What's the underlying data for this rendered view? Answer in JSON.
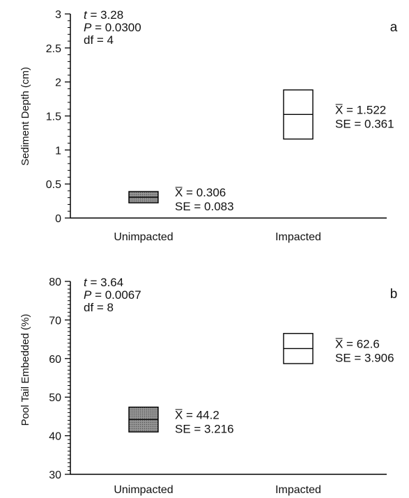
{
  "chart_data": [
    {
      "type": "box",
      "panel": "a",
      "ylabel": "Sediment Depth (cm)",
      "ylim": [
        0,
        3
      ],
      "yticks": [
        "0",
        "0.5",
        "1",
        "1.5",
        "2",
        "2.5",
        "3"
      ],
      "categories": [
        "Unimpacted",
        "Impacted"
      ],
      "stats": {
        "t": "t = 3.28",
        "p": "P = 0.0300",
        "df": "df = 4"
      },
      "groups": [
        {
          "category": "Unimpacted",
          "mean": 0.306,
          "se": 0.083,
          "low": 0.223,
          "high": 0.389,
          "filled": true,
          "mean_label": "X̅ = 0.306",
          "se_label": "SE  = 0.083"
        },
        {
          "category": "Impacted",
          "mean": 1.522,
          "se": 0.361,
          "low": 1.161,
          "high": 1.883,
          "filled": false,
          "mean_label": "X̅ = 1.522",
          "se_label": "SE  = 0.361"
        }
      ]
    },
    {
      "type": "box",
      "panel": "b",
      "ylabel": "Pool Tail Embedded (%)",
      "ylim": [
        30,
        80
      ],
      "yticks": [
        "30",
        "40",
        "50",
        "60",
        "70",
        "80"
      ],
      "categories": [
        "Unimpacted",
        "Impacted"
      ],
      "stats": {
        "t": "t = 3.64",
        "p": "P = 0.0067",
        "df": "df = 8"
      },
      "groups": [
        {
          "category": "Unimpacted",
          "mean": 44.2,
          "se": 3.216,
          "low": 40.984,
          "high": 47.416,
          "filled": true,
          "mean_label": "X̅ = 44.2",
          "se_label": "SE  = 3.216"
        },
        {
          "category": "Impacted",
          "mean": 62.6,
          "se": 3.906,
          "low": 58.694,
          "high": 66.506,
          "filled": false,
          "mean_label": "X̅ = 62.6",
          "se_label": "SE  = 3.906"
        }
      ]
    }
  ]
}
